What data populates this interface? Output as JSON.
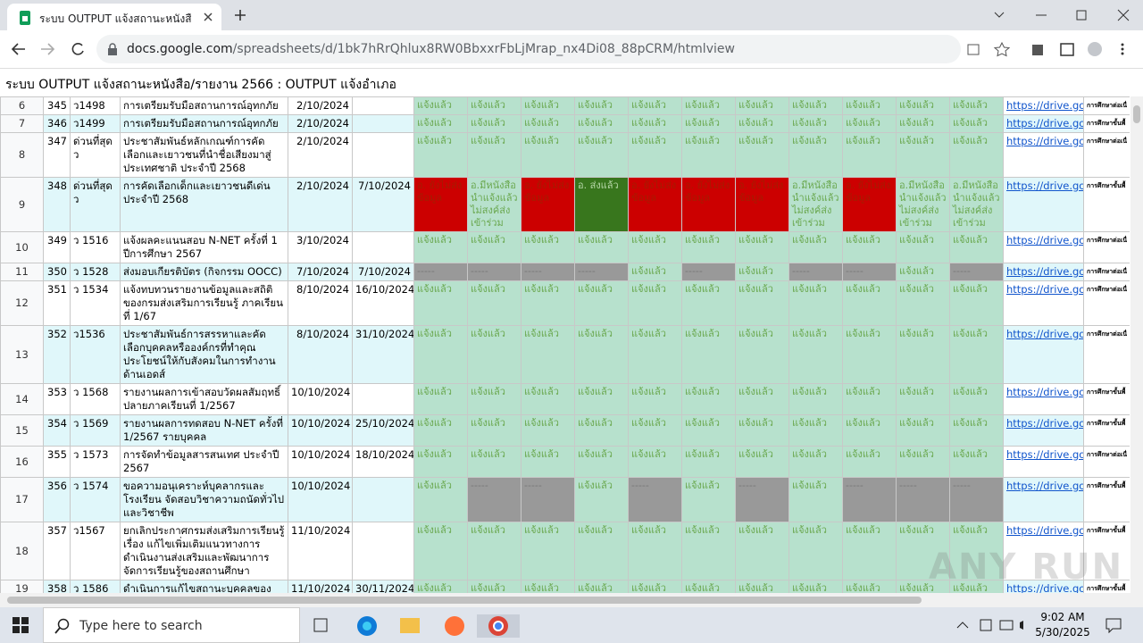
{
  "browser": {
    "tab_title": "ระบบ OUTPUT แจ้งสถานะหนังสือ/รา",
    "url_host": "docs.google.com",
    "url_path": "/spreadsheets/d/1bk7hRrQhlux8RW0BbxxrFbLjMrap_nx4Di08_88pCRM/htmlview"
  },
  "page": {
    "title": "ระบบ OUTPUT แจ้งสถานะหนังสือ/รายงาน 2566 : OUTPUT แจ้งอำเภอ"
  },
  "table": {
    "rows": [
      {
        "row": 6,
        "no": 345,
        "code": "ว1498",
        "title": "การเตรียมรับมือสถานการณ์อุทกภัย",
        "date_sent": "2/10/2024",
        "date_due": null,
        "cells": [
          {
            "text": "แจ้งแล้ว",
            "kind": "done"
          },
          {
            "text": "แจ้งแล้ว",
            "kind": "done"
          },
          {
            "text": "แจ้งแล้ว",
            "kind": "done"
          },
          {
            "text": "แจ้งแล้ว",
            "kind": "done"
          },
          {
            "text": "แจ้งแล้ว",
            "kind": "done"
          },
          {
            "text": "แจ้งแล้ว",
            "kind": "done"
          },
          {
            "text": "แจ้งแล้ว",
            "kind": "done"
          },
          {
            "text": "แจ้งแล้ว",
            "kind": "done"
          },
          {
            "text": "แจ้งแล้ว",
            "kind": "done"
          },
          {
            "text": "แจ้งแล้ว",
            "kind": "done"
          },
          {
            "text": "แจ้งแล้ว",
            "kind": "done"
          }
        ],
        "link": "https://drive.goo",
        "note": "การศึกษาต่อเนื่"
      },
      {
        "row": 7,
        "no": 346,
        "code": "ว1499",
        "title": "การเตรียมรับมือสถานการณ์อุทกภัย",
        "date_sent": "2/10/2024",
        "date_due": null,
        "cells": [
          {
            "text": "แจ้งแล้ว",
            "kind": "done"
          },
          {
            "text": "แจ้งแล้ว",
            "kind": "done"
          },
          {
            "text": "แจ้งแล้ว",
            "kind": "done"
          },
          {
            "text": "แจ้งแล้ว",
            "kind": "done"
          },
          {
            "text": "แจ้งแล้ว",
            "kind": "done"
          },
          {
            "text": "แจ้งแล้ว",
            "kind": "done"
          },
          {
            "text": "แจ้งแล้ว",
            "kind": "done"
          },
          {
            "text": "แจ้งแล้ว",
            "kind": "done"
          },
          {
            "text": "แจ้งแล้ว",
            "kind": "done"
          },
          {
            "text": "แจ้งแล้ว",
            "kind": "done"
          },
          {
            "text": "แจ้งแล้ว",
            "kind": "done"
          }
        ],
        "link": "https://drive.goo",
        "note": "การศึกษาขั้นพื้"
      },
      {
        "row": 8,
        "no": 347,
        "code": "ด่วนที่สุด ว",
        "title": "ประชาสัมพันธ์หลักเกณฑ์การคัดเลือกและเยาวชนที่นำชื่อเสียงมาสู่ประเทศชาติ ประจำปี 2568",
        "date_sent": "2/10/2024",
        "date_due": null,
        "cells": [
          {
            "text": "แจ้งแล้ว",
            "kind": "done"
          },
          {
            "text": "แจ้งแล้ว",
            "kind": "done"
          },
          {
            "text": "แจ้งแล้ว",
            "kind": "done"
          },
          {
            "text": "แจ้งแล้ว",
            "kind": "done"
          },
          {
            "text": "แจ้งแล้ว",
            "kind": "done"
          },
          {
            "text": "แจ้งแล้ว",
            "kind": "done"
          },
          {
            "text": "แจ้งแล้ว",
            "kind": "done"
          },
          {
            "text": "แจ้งแล้ว",
            "kind": "done"
          },
          {
            "text": "แจ้งแล้ว",
            "kind": "done"
          },
          {
            "text": "แจ้งแล้ว",
            "kind": "done"
          },
          {
            "text": "แจ้งแล้ว",
            "kind": "done"
          }
        ],
        "link": "https://drive.goo",
        "note": "การศึกษาต่อเนื่"
      },
      {
        "row": 9,
        "no": 348,
        "code": "ด่วนที่สุด ว",
        "title": "การคัดเลือกเด็กและเยาวชนดีเด่น ประจำปี 2568",
        "date_sent": "2/10/2024",
        "date_due": "7/10/2024",
        "cells": [
          {
            "text": "อ. ยังไม่ส่งข้อมูล",
            "kind": "red"
          },
          {
            "text": "อ.มีหนังสือนำแจ้งแล้วไม่สงค์ส่งเข้าร่วม",
            "kind": "done"
          },
          {
            "text": "อ. ยังไม่ส่งข้อมูล",
            "kind": "red"
          },
          {
            "text": "อ. ส่งแล้ว",
            "kind": "dark"
          },
          {
            "text": "อ. ยังไม่ส่งข้อมูล",
            "kind": "red"
          },
          {
            "text": "อ. ยังไม่ส่งข้อมูล",
            "kind": "red"
          },
          {
            "text": "อ. ยังไม่ส่งข้อมูล",
            "kind": "red"
          },
          {
            "text": "อ.มีหนังสือนำแจ้งแล้วไม่สงค์ส่งเข้าร่วม",
            "kind": "done"
          },
          {
            "text": "อ. ยังไม่ส่งข้อมูล",
            "kind": "red"
          },
          {
            "text": "อ.มีหนังสือนำแจ้งแล้วไม่สงค์ส่งเข้าร่วม",
            "kind": "done"
          },
          {
            "text": "อ.มีหนังสือนำแจ้งแล้วไม่สงค์ส่งเข้าร่วม",
            "kind": "done"
          }
        ],
        "link": "https://drive.goo",
        "note": "การศึกษาขั้นพื้"
      },
      {
        "row": 10,
        "no": 349,
        "code": "ว 1516",
        "title": "แจ้งผลคะแนนสอบ N-NET ครั้งที่ 1 ปีการศึกษา 2567",
        "date_sent": "3/10/2024",
        "date_due": null,
        "cells": [
          {
            "text": "แจ้งแล้ว",
            "kind": "done"
          },
          {
            "text": "แจ้งแล้ว",
            "kind": "done"
          },
          {
            "text": "แจ้งแล้ว",
            "kind": "done"
          },
          {
            "text": "แจ้งแล้ว",
            "kind": "done"
          },
          {
            "text": "แจ้งแล้ว",
            "kind": "done"
          },
          {
            "text": "แจ้งแล้ว",
            "kind": "done"
          },
          {
            "text": "แจ้งแล้ว",
            "kind": "done"
          },
          {
            "text": "แจ้งแล้ว",
            "kind": "done"
          },
          {
            "text": "แจ้งแล้ว",
            "kind": "done"
          },
          {
            "text": "แจ้งแล้ว",
            "kind": "done"
          },
          {
            "text": "แจ้งแล้ว",
            "kind": "done"
          }
        ],
        "link": "https://drive.goo",
        "note": "การศึกษาต่อเนื่"
      },
      {
        "row": 11,
        "no": 350,
        "code": "ว 1528",
        "title": "ส่งมอบเกียรติบัตร (กิจกรรม OOCC)",
        "date_sent": "7/10/2024",
        "date_due": "7/10/2024",
        "cells": [
          {
            "text": "-----",
            "kind": "gray"
          },
          {
            "text": "-----",
            "kind": "gray"
          },
          {
            "text": "-----",
            "kind": "gray"
          },
          {
            "text": "-----",
            "kind": "gray"
          },
          {
            "text": "แจ้งแล้ว",
            "kind": "done"
          },
          {
            "text": "-----",
            "kind": "gray"
          },
          {
            "text": "แจ้งแล้ว",
            "kind": "done"
          },
          {
            "text": "-----",
            "kind": "gray"
          },
          {
            "text": "-----",
            "kind": "gray"
          },
          {
            "text": "แจ้งแล้ว",
            "kind": "done"
          },
          {
            "text": "-----",
            "kind": "gray"
          }
        ],
        "link": "https://drive.goo",
        "note": "การศึกษาต่อเนื่"
      },
      {
        "row": 12,
        "no": 351,
        "code": "ว 1534",
        "title": "แจ้งทบทวนรายงานข้อมูลและสถิติของกรมส่งเสริมการเรียนรู้ ภาคเรียนที่ 1/67",
        "date_sent": "8/10/2024",
        "date_due": "16/10/2024",
        "cells": [
          {
            "text": "แจ้งแล้ว",
            "kind": "done"
          },
          {
            "text": "แจ้งแล้ว",
            "kind": "done"
          },
          {
            "text": "แจ้งแล้ว",
            "kind": "done"
          },
          {
            "text": "แจ้งแล้ว",
            "kind": "done"
          },
          {
            "text": "แจ้งแล้ว",
            "kind": "done"
          },
          {
            "text": "แจ้งแล้ว",
            "kind": "done"
          },
          {
            "text": "แจ้งแล้ว",
            "kind": "done"
          },
          {
            "text": "แจ้งแล้ว",
            "kind": "done"
          },
          {
            "text": "แจ้งแล้ว",
            "kind": "done"
          },
          {
            "text": "แจ้งแล้ว",
            "kind": "done"
          },
          {
            "text": "แจ้งแล้ว",
            "kind": "done"
          }
        ],
        "link": "https://drive.goo",
        "note": "การศึกษาต่อเนื่"
      },
      {
        "row": 13,
        "no": 352,
        "code": "ว1536",
        "title": "ประชาสัมพันธ์การสรรหาและคัดเลือกบุคคลหรือองค์กรที่ทำคุณประโยชน์ให้กับสังคมในการทำงานด้านเอดส์",
        "date_sent": "8/10/2024",
        "date_due": "31/10/2024",
        "cells": [
          {
            "text": "แจ้งแล้ว",
            "kind": "done"
          },
          {
            "text": "แจ้งแล้ว",
            "kind": "done"
          },
          {
            "text": "แจ้งแล้ว",
            "kind": "done"
          },
          {
            "text": "แจ้งแล้ว",
            "kind": "done"
          },
          {
            "text": "แจ้งแล้ว",
            "kind": "done"
          },
          {
            "text": "แจ้งแล้ว",
            "kind": "done"
          },
          {
            "text": "แจ้งแล้ว",
            "kind": "done"
          },
          {
            "text": "แจ้งแล้ว",
            "kind": "done"
          },
          {
            "text": "แจ้งแล้ว",
            "kind": "done"
          },
          {
            "text": "แจ้งแล้ว",
            "kind": "done"
          },
          {
            "text": "แจ้งแล้ว",
            "kind": "done"
          }
        ],
        "link": "https://drive.goo",
        "note": "การศึกษาต่อเนื่"
      },
      {
        "row": 14,
        "no": 353,
        "code": "ว 1568",
        "title": "รายงานผลการเข้าสอบวัดผลสัมฤทธิ์ ปลายภาคเรียนที่ 1/2567",
        "date_sent": "10/10/2024",
        "date_due": null,
        "cells": [
          {
            "text": "แจ้งแล้ว",
            "kind": "done"
          },
          {
            "text": "แจ้งแล้ว",
            "kind": "done"
          },
          {
            "text": "แจ้งแล้ว",
            "kind": "done"
          },
          {
            "text": "แจ้งแล้ว",
            "kind": "done"
          },
          {
            "text": "แจ้งแล้ว",
            "kind": "done"
          },
          {
            "text": "แจ้งแล้ว",
            "kind": "done"
          },
          {
            "text": "แจ้งแล้ว",
            "kind": "done"
          },
          {
            "text": "แจ้งแล้ว",
            "kind": "done"
          },
          {
            "text": "แจ้งแล้ว",
            "kind": "done"
          },
          {
            "text": "แจ้งแล้ว",
            "kind": "done"
          },
          {
            "text": "แจ้งแล้ว",
            "kind": "done"
          }
        ],
        "link": "https://drive.goo",
        "note": "การศึกษาขั้นพื้"
      },
      {
        "row": 15,
        "no": 354,
        "code": "ว 1569",
        "title": "รายงานผลการทดสอบ N-NET ครั้งที่ 1/2567 รายบุคคล",
        "date_sent": "10/10/2024",
        "date_due": "25/10/2024",
        "cells": [
          {
            "text": "แจ้งแล้ว",
            "kind": "done"
          },
          {
            "text": "แจ้งแล้ว",
            "kind": "done"
          },
          {
            "text": "แจ้งแล้ว",
            "kind": "done"
          },
          {
            "text": "แจ้งแล้ว",
            "kind": "done"
          },
          {
            "text": "แจ้งแล้ว",
            "kind": "done"
          },
          {
            "text": "แจ้งแล้ว",
            "kind": "done"
          },
          {
            "text": "แจ้งแล้ว",
            "kind": "done"
          },
          {
            "text": "แจ้งแล้ว",
            "kind": "done"
          },
          {
            "text": "แจ้งแล้ว",
            "kind": "done"
          },
          {
            "text": "แจ้งแล้ว",
            "kind": "done"
          },
          {
            "text": "แจ้งแล้ว",
            "kind": "done"
          }
        ],
        "link": "https://drive.goo",
        "note": "การศึกษาขั้นพื้"
      },
      {
        "row": 16,
        "no": 355,
        "code": "ว 1573",
        "title": "การจัดทำข้อมูลสารสนเทศ ประจำปี 2567",
        "date_sent": "10/10/2024",
        "date_due": "18/10/2024",
        "cells": [
          {
            "text": "แจ้งแล้ว",
            "kind": "done"
          },
          {
            "text": "แจ้งแล้ว",
            "kind": "done"
          },
          {
            "text": "แจ้งแล้ว",
            "kind": "done"
          },
          {
            "text": "แจ้งแล้ว",
            "kind": "done"
          },
          {
            "text": "แจ้งแล้ว",
            "kind": "done"
          },
          {
            "text": "แจ้งแล้ว",
            "kind": "done"
          },
          {
            "text": "แจ้งแล้ว",
            "kind": "done"
          },
          {
            "text": "แจ้งแล้ว",
            "kind": "done"
          },
          {
            "text": "แจ้งแล้ว",
            "kind": "done"
          },
          {
            "text": "แจ้งแล้ว",
            "kind": "done"
          },
          {
            "text": "แจ้งแล้ว",
            "kind": "done"
          }
        ],
        "link": "https://drive.goo",
        "note": "การศึกษาต่อเนื่"
      },
      {
        "row": 17,
        "no": 356,
        "code": "ว 1574",
        "title": "ขอความอนุเคราะห์บุคลากรและโรงเรียน จัดสอบวิชาความถนัดทั่วไปและวิชาชีพ",
        "date_sent": "10/10/2024",
        "date_due": null,
        "cells": [
          {
            "text": "แจ้งแล้ว",
            "kind": "done"
          },
          {
            "text": "-----",
            "kind": "gray"
          },
          {
            "text": "-----",
            "kind": "gray"
          },
          {
            "text": "แจ้งแล้ว",
            "kind": "done"
          },
          {
            "text": "-----",
            "kind": "gray"
          },
          {
            "text": "แจ้งแล้ว",
            "kind": "done"
          },
          {
            "text": "-----",
            "kind": "gray"
          },
          {
            "text": "แจ้งแล้ว",
            "kind": "done"
          },
          {
            "text": "-----",
            "kind": "gray"
          },
          {
            "text": "-----",
            "kind": "gray"
          },
          {
            "text": "-----",
            "kind": "gray"
          }
        ],
        "link": "https://drive.goo",
        "note": "การศึกษาขั้นพื้"
      },
      {
        "row": 18,
        "no": 357,
        "code": "ว1567",
        "title": "ยกเลิกประกาศกรมส่งเสริมการเรียนรู้ เรื่อง แก้ไขเพิ่มเติมแนวทางการดำเนินงานส่งเสริมและพัฒนาการจัดการเรียนรู้ของสถานศึกษา",
        "date_sent": "11/10/2024",
        "date_due": null,
        "cells": [
          {
            "text": "แจ้งแล้ว",
            "kind": "done"
          },
          {
            "text": "แจ้งแล้ว",
            "kind": "done"
          },
          {
            "text": "แจ้งแล้ว",
            "kind": "done"
          },
          {
            "text": "แจ้งแล้ว",
            "kind": "done"
          },
          {
            "text": "แจ้งแล้ว",
            "kind": "done"
          },
          {
            "text": "แจ้งแล้ว",
            "kind": "done"
          },
          {
            "text": "แจ้งแล้ว",
            "kind": "done"
          },
          {
            "text": "แจ้งแล้ว",
            "kind": "done"
          },
          {
            "text": "แจ้งแล้ว",
            "kind": "done"
          },
          {
            "text": "แจ้งแล้ว",
            "kind": "done"
          },
          {
            "text": "แจ้งแล้ว",
            "kind": "done"
          }
        ],
        "link": "https://drive.goo",
        "note": "การศึกษาขั้นพื้"
      },
      {
        "row": 19,
        "no": 358,
        "code": "ว 1586",
        "title": "ดำเนินการแก้ไขสถานะบุคคลของ",
        "date_sent": "11/10/2024",
        "date_due": "30/11/2024",
        "cells": [
          {
            "text": "แจ้งแล้ว",
            "kind": "done"
          },
          {
            "text": "แจ้งแล้ว",
            "kind": "done"
          },
          {
            "text": "แจ้งแล้ว",
            "kind": "done"
          },
          {
            "text": "แจ้งแล้ว",
            "kind": "done"
          },
          {
            "text": "แจ้งแล้ว",
            "kind": "done"
          },
          {
            "text": "แจ้งแล้ว",
            "kind": "done"
          },
          {
            "text": "แจ้งแล้ว",
            "kind": "done"
          },
          {
            "text": "แจ้งแล้ว",
            "kind": "done"
          },
          {
            "text": "แจ้งแล้ว",
            "kind": "done"
          },
          {
            "text": "แจ้งแล้ว",
            "kind": "done"
          },
          {
            "text": "แจ้งแล้ว",
            "kind": "done"
          }
        ],
        "link": "https://drive.goo",
        "note": "การศึกษาขั้นพื้"
      }
    ]
  },
  "taskbar": {
    "search": "Type here to search",
    "time": "9:02 AM",
    "date": "5/30/2025"
  },
  "watermark": "ANY RUN"
}
